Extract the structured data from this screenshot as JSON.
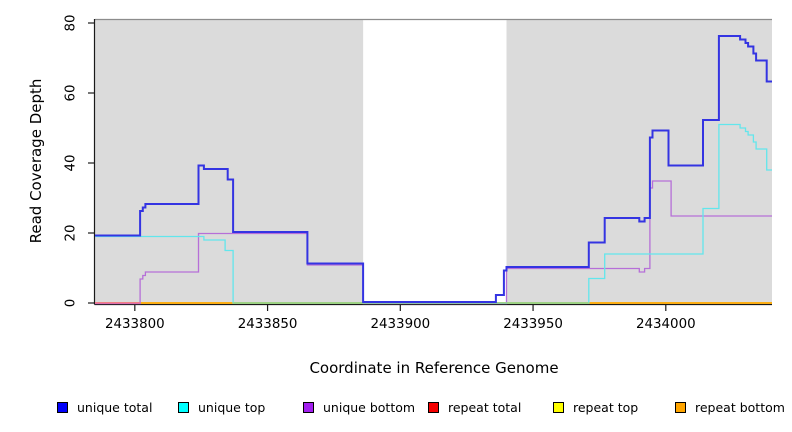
{
  "chart_data": {
    "type": "line",
    "subtype": "step-after",
    "title": "",
    "xlabel": "Coordinate in Reference Genome",
    "ylabel": "Read Coverage Depth",
    "xlim": [
      2433785,
      2434040
    ],
    "ylim": [
      0,
      80
    ],
    "x_ticks": [
      "2433800",
      "2433850",
      "2433900",
      "2433950",
      "2434000"
    ],
    "x_tick_values": [
      2433800,
      2433850,
      2433900,
      2433950,
      2434000
    ],
    "y_ticks": [
      "0",
      "20",
      "40",
      "60",
      "80"
    ],
    "y_tick_values": [
      0,
      20,
      40,
      60,
      80
    ],
    "plot_background": "#DBDBDB",
    "masked_region": {
      "start": 2433886,
      "end": 2433940,
      "color": "#FFFFFF"
    },
    "axis_color": "#1a1a1a",
    "top_border_color": "#8c8c8c",
    "series": [
      {
        "name": "repeat total",
        "color": "#E8486E",
        "line_width": 1.4,
        "steps": [
          [
            2433785,
            0
          ],
          [
            2434040,
            0
          ]
        ]
      },
      {
        "name": "repeat top",
        "color": "#FFFF00",
        "line_width": 1.4,
        "steps": [
          [
            2433785,
            0
          ],
          [
            2434040,
            0
          ]
        ]
      },
      {
        "name": "repeat bottom",
        "color": "#FFA500",
        "line_width": 1.4,
        "steps": [
          [
            2433785,
            0
          ],
          [
            2434040,
            0
          ]
        ]
      },
      {
        "name": "unique bottom",
        "color": "#B66FD8",
        "line_width": 1.3,
        "steps": [
          [
            2433785,
            0
          ],
          [
            2433802,
            7
          ],
          [
            2433803,
            8
          ],
          [
            2433804,
            9
          ],
          [
            2433824,
            20
          ],
          [
            2433865,
            11
          ],
          [
            2433886,
            0
          ],
          [
            2433940,
            10
          ],
          [
            2433990,
            9
          ],
          [
            2433992,
            10
          ],
          [
            2433994,
            33
          ],
          [
            2433995,
            35
          ],
          [
            2434002,
            25
          ],
          [
            2434040,
            25
          ]
        ]
      },
      {
        "name": "unique top",
        "color": "#62E6EC",
        "line_width": 1.3,
        "steps": [
          [
            2433785,
            19
          ],
          [
            2433826,
            18
          ],
          [
            2433834,
            15
          ],
          [
            2433837,
            0
          ],
          [
            2433971,
            7
          ],
          [
            2433977,
            14
          ],
          [
            2434014,
            27
          ],
          [
            2434020,
            51
          ],
          [
            2434028,
            50
          ],
          [
            2434030,
            49
          ],
          [
            2434031,
            48
          ],
          [
            2434033,
            46
          ],
          [
            2434034,
            44
          ],
          [
            2434038,
            38
          ],
          [
            2434040,
            38
          ]
        ]
      },
      {
        "name": "unique total",
        "color": "#3434E2",
        "line_width": 2,
        "steps": [
          [
            2433785,
            19
          ],
          [
            2433802,
            26
          ],
          [
            2433803,
            27
          ],
          [
            2433804,
            28
          ],
          [
            2433824,
            39
          ],
          [
            2433826,
            38
          ],
          [
            2433835,
            35
          ],
          [
            2433837,
            20
          ],
          [
            2433865,
            11
          ],
          [
            2433886,
            0
          ],
          [
            2433936,
            2
          ],
          [
            2433939,
            9
          ],
          [
            2433940,
            10
          ],
          [
            2433971,
            17
          ],
          [
            2433977,
            24
          ],
          [
            2433990,
            23
          ],
          [
            2433992,
            24
          ],
          [
            2433994,
            47
          ],
          [
            2433995,
            49
          ],
          [
            2434001,
            39
          ],
          [
            2434014,
            52
          ],
          [
            2434020,
            76
          ],
          [
            2434028,
            75
          ],
          [
            2434030,
            74
          ],
          [
            2434031,
            73
          ],
          [
            2434033,
            71
          ],
          [
            2434034,
            69
          ],
          [
            2434038,
            63
          ],
          [
            2434040,
            63
          ]
        ]
      }
    ],
    "baseline_blends": [
      {
        "note": "unique-bottom over repeat lines at depth 0",
        "start": 2433785,
        "end": 2433802,
        "color": "#ED6FA0"
      },
      {
        "note": "unique-top over repeat lines at depth 0",
        "start": 2433837,
        "end": 2433971,
        "color": "#8CD793"
      }
    ]
  },
  "legend": {
    "items": [
      {
        "label": "unique total",
        "color": "#0000FA"
      },
      {
        "label": "unique top",
        "color": "#00FFFF"
      },
      {
        "label": "unique bottom",
        "color": "#A21FEF"
      },
      {
        "label": "repeat total",
        "color": "#F50000"
      },
      {
        "label": "repeat top",
        "color": "#FFFF00"
      },
      {
        "label": "repeat bottom",
        "color": "#FFA500"
      }
    ]
  }
}
